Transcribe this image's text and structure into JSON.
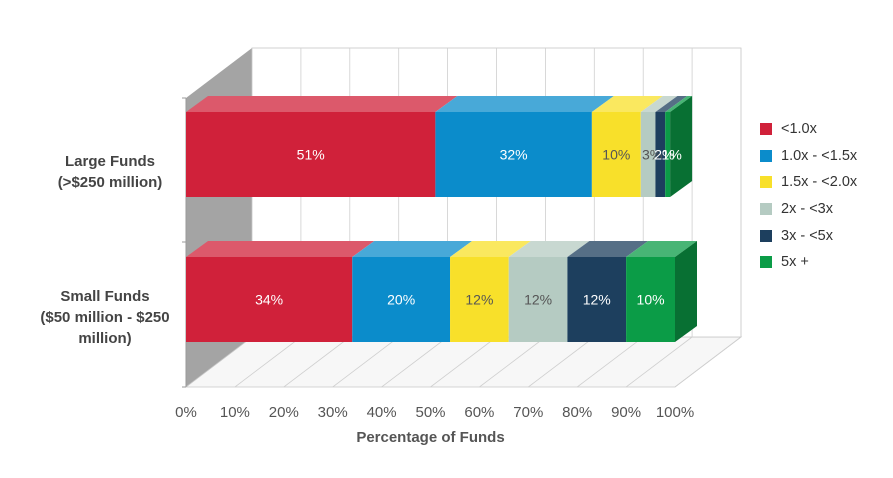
{
  "chart_data": {
    "type": "bar",
    "orientation": "horizontal",
    "stacked": true,
    "style": "3d",
    "categories": [
      {
        "lines": [
          "Large Funds",
          "(>$250 million)"
        ]
      },
      {
        "lines": [
          "Small Funds",
          "($50 million - $250",
          "million)"
        ]
      }
    ],
    "series": [
      {
        "name": "<1.0x",
        "color": "#d0213a",
        "values": [
          51,
          34
        ]
      },
      {
        "name": "1.0x - <1.5x",
        "color": "#0b8ccb",
        "values": [
          32,
          20
        ]
      },
      {
        "name": "1.5x - <2.0x",
        "color": "#f8e02a",
        "values": [
          10,
          12
        ]
      },
      {
        "name": "2x - <3x",
        "color": "#b5cbc2",
        "values": [
          3,
          12
        ]
      },
      {
        "name": "3x - <5x",
        "color": "#1d3f5e",
        "values": [
          2,
          12
        ]
      },
      {
        "name": "5x +",
        "color": "#0b9c47",
        "values": [
          1,
          10
        ]
      }
    ],
    "data_labels": [
      [
        "51%",
        "32%",
        "10%",
        "3%",
        "2%",
        "1%"
      ],
      [
        "34%",
        "20%",
        "12%",
        "12%",
        "12%",
        "10%"
      ]
    ],
    "label_colors": [
      "#ffffff",
      "#ffffff",
      "#555555",
      "#555555",
      "#ffffff",
      "#ffffff"
    ],
    "x_ticks": [
      "0%",
      "10%",
      "20%",
      "30%",
      "40%",
      "50%",
      "60%",
      "70%",
      "80%",
      "90%",
      "100%"
    ],
    "xlim": [
      0,
      100
    ],
    "xlabel": "Percentage of Funds",
    "ylabel": "",
    "title": "",
    "grid": true,
    "legend_position": "right"
  }
}
